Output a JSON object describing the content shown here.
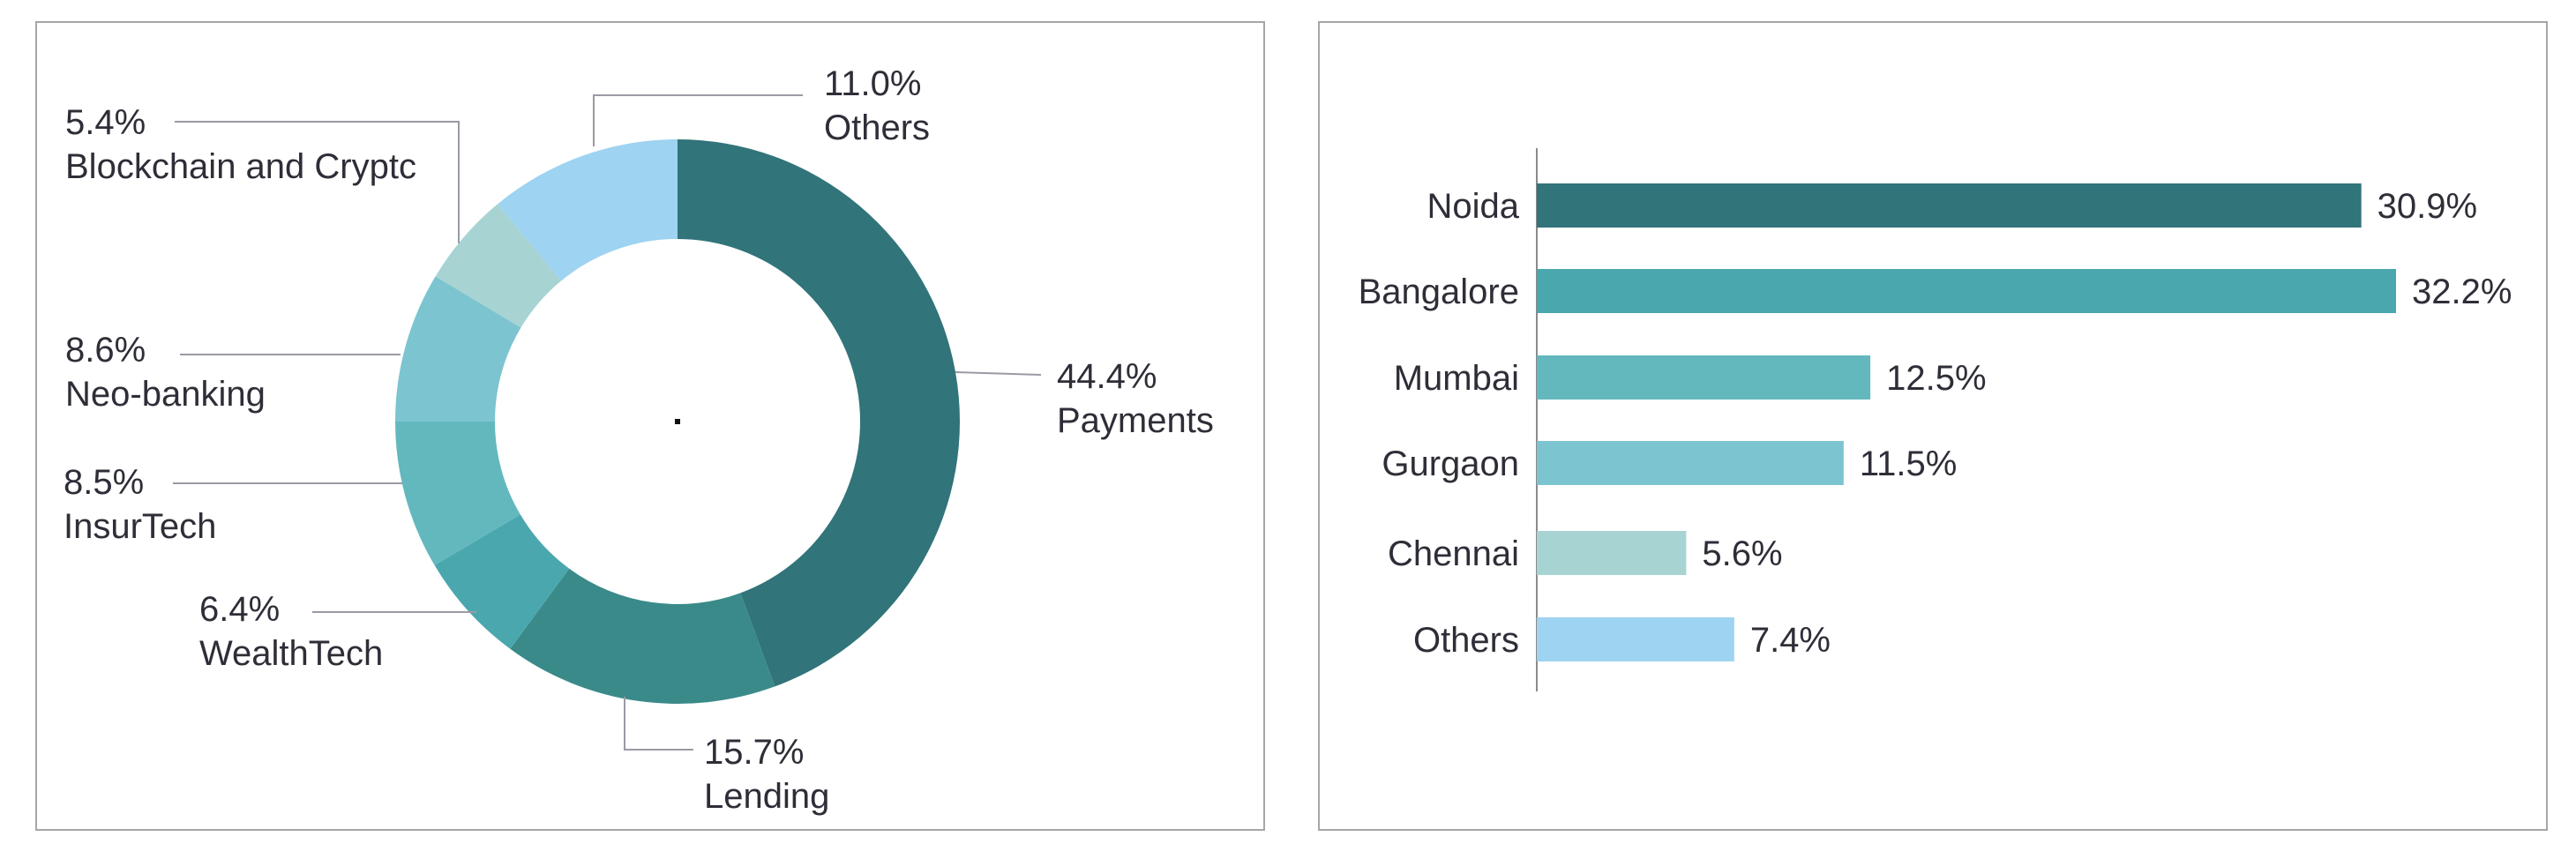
{
  "chart_data": [
    {
      "type": "pie",
      "variant": "donut",
      "categories": [
        "Payments",
        "Lending",
        "WealthTech",
        "InsurTech",
        "Neo-banking",
        "Blockchain and Cryptc",
        "Others"
      ],
      "values": [
        44.4,
        15.7,
        6.4,
        8.5,
        8.6,
        5.4,
        11.0
      ],
      "value_labels": [
        "44.4%",
        "15.7%",
        "6.4%",
        "8.5%",
        "8.6%",
        "5.4%",
        "11.0%"
      ],
      "colors": [
        "#31747a",
        "#3a8a8a",
        "#4aa7ae",
        "#63b8be",
        "#7cc4d0",
        "#a7d3d3",
        "#9ed3f1"
      ],
      "legend": "none",
      "title": ""
    },
    {
      "type": "bar",
      "orientation": "horizontal",
      "categories": [
        "Noida",
        "Bangalore",
        "Mumbai",
        "Gurgaon",
        "Chennai",
        "Others"
      ],
      "values": [
        30.9,
        32.2,
        12.5,
        11.5,
        5.6,
        7.4
      ],
      "value_labels": [
        "30.9%",
        "32.2%",
        "12.5%",
        "11.5%",
        "5.6%",
        "7.4%"
      ],
      "colors": [
        "#31747a",
        "#4aa7ae",
        "#63b8be",
        "#7cc4d0",
        "#a7d3d3",
        "#9ed3f1"
      ],
      "xlim": [
        0,
        32.2
      ],
      "grid": false,
      "legend": "none",
      "title": ""
    }
  ],
  "colors": {
    "leader_line": "#9a9aa6",
    "axis": "#8a8a8a",
    "text": "#2e2e38",
    "border": "#a6a6a6"
  }
}
